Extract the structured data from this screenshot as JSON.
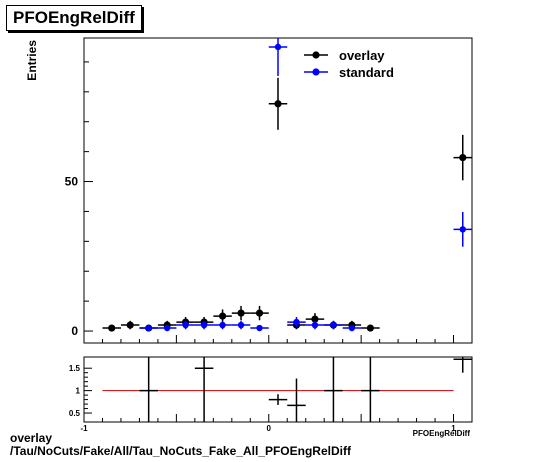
{
  "title": "PFOEngRelDiff",
  "footer": {
    "line1": "overlay",
    "line2": "/Tau/NoCuts/Fake/All/Tau_NoCuts_Fake_All_PFOEngRelDiff"
  },
  "colors": {
    "overlay": "#000000",
    "standard": "#0000ff",
    "ratio_line": "#cc0000"
  },
  "chart_data": [
    {
      "type": "scatter",
      "ylabel": "Entries",
      "xlim": [
        -1,
        1.1
      ],
      "ylim": [
        -4,
        98
      ],
      "y_ticks": [
        0,
        50
      ],
      "y_tick_labels": [
        "0",
        "50"
      ],
      "legend": {
        "placement": "top-right",
        "entries": [
          "overlay",
          "standard"
        ]
      },
      "bin_width": 0.1,
      "series": [
        {
          "name": "overlay",
          "x": [
            -0.85,
            -0.75,
            -0.65,
            -0.55,
            -0.45,
            -0.35,
            -0.25,
            -0.15,
            -0.05,
            0.05,
            0.15,
            0.25,
            0.35,
            0.45,
            0.55,
            1.05
          ],
          "y": [
            1,
            2,
            1,
            2,
            3,
            3,
            5,
            6,
            6,
            76,
            2,
            4,
            2,
            2,
            1,
            58
          ],
          "yerr": [
            1,
            1.4,
            1,
            1.4,
            1.7,
            1.7,
            2.2,
            2.4,
            2.4,
            8.7,
            1.4,
            2,
            1.4,
            1.4,
            1,
            7.6
          ]
        },
        {
          "name": "standard",
          "x": [
            -0.65,
            -0.55,
            -0.45,
            -0.35,
            -0.25,
            -0.15,
            -0.05,
            0.05,
            0.15,
            0.25,
            0.35,
            0.45,
            1.05
          ],
          "y": [
            1,
            1,
            2,
            2,
            2,
            2,
            1,
            95,
            3,
            2,
            2,
            1,
            34
          ],
          "yerr": [
            1,
            1,
            1.4,
            1.4,
            1.4,
            1.4,
            1,
            9.7,
            1.7,
            1.4,
            1.4,
            1,
            5.8
          ]
        }
      ]
    },
    {
      "type": "scatter",
      "xlabel": "PFOEngRelDiff",
      "xlim": [
        -1,
        1.1
      ],
      "ylim": [
        0.3,
        1.75
      ],
      "x_ticks": [
        -1,
        0,
        1
      ],
      "x_tick_labels": [
        "-1",
        "0",
        "1"
      ],
      "y_ticks": [
        0.5,
        1,
        1.5
      ],
      "y_tick_labels": [
        "0.5",
        "1",
        "1.5"
      ],
      "reference_line": 1,
      "series": [
        {
          "name": "ratio",
          "x": [
            -0.65,
            -0.35,
            0.05,
            0.15,
            0.35,
            0.55,
            1.05
          ],
          "y": [
            1,
            1.5,
            0.8,
            0.67,
            1,
            1,
            1.7
          ],
          "yerr": [
            1.41,
            1.22,
            0.12,
            0.6,
            1.41,
            1.41,
            0.3
          ]
        }
      ]
    }
  ]
}
